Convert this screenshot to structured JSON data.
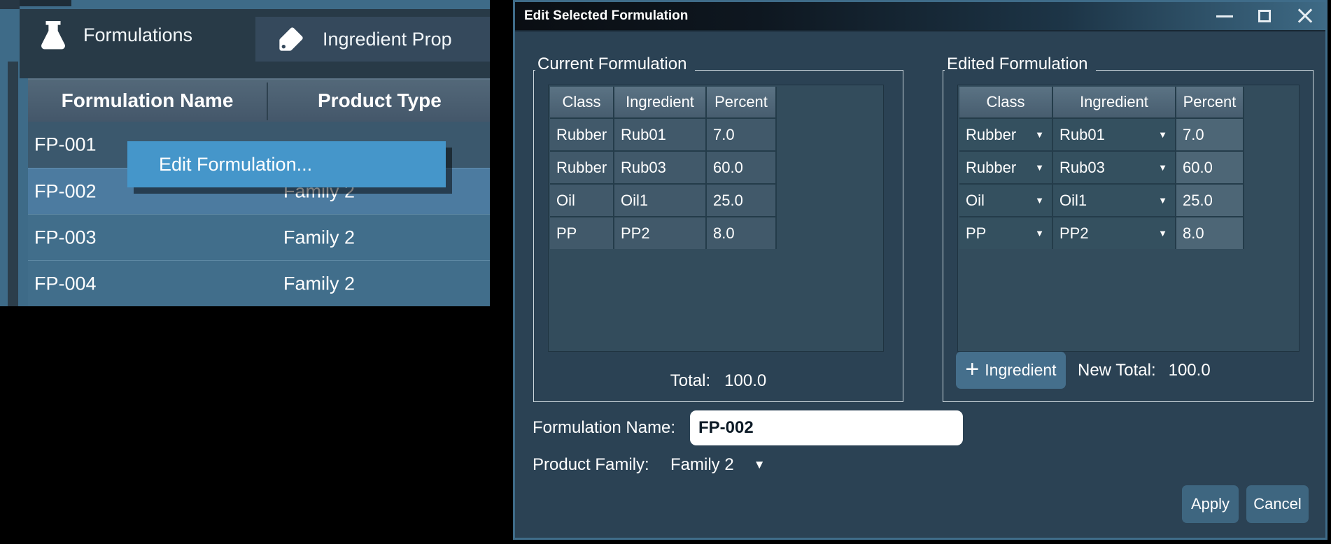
{
  "icons": {
    "chevron_down": "▼",
    "plus": "+"
  },
  "colors": {
    "desktop_background": "#000000",
    "left_window_background": "#3e6b88",
    "selected_row": "#4c7ba0",
    "context_menu_highlight": "#4596ca",
    "dialog_background": "#2b4254",
    "dialog_border": "#3f6c89",
    "button_background": "#3e6680"
  },
  "left_window": {
    "tabs": [
      {
        "label": "Formulations",
        "icon": "flask-icon",
        "selected": true
      },
      {
        "label": "Ingredient Prop",
        "icon": "tag-icon",
        "selected": false
      }
    ],
    "table": {
      "columns": [
        "Formulation Name",
        "Product Type"
      ],
      "rows": [
        {
          "name": "FP-001",
          "product_type": "",
          "selected": false
        },
        {
          "name": "FP-002",
          "product_type": "Family 2",
          "selected": true
        },
        {
          "name": "FP-003",
          "product_type": "Family 2",
          "selected": false
        },
        {
          "name": "FP-004",
          "product_type": "Family 2",
          "selected": false
        }
      ]
    },
    "context_menu": {
      "items": [
        "Edit Formulation..."
      ]
    }
  },
  "dialog": {
    "title": "Edit Selected Formulation",
    "window_controls": [
      "minimize-icon",
      "maximize-icon",
      "close-icon"
    ],
    "current_formulation": {
      "group_label": "Current Formulation",
      "columns": [
        "Class",
        "Ingredient",
        "Percent"
      ],
      "rows": [
        {
          "class": "Rubber",
          "ingredient": "Rub01",
          "percent": "7.0"
        },
        {
          "class": "Rubber",
          "ingredient": "Rub03",
          "percent": "60.0"
        },
        {
          "class": "Oil",
          "ingredient": "Oil1",
          "percent": "25.0"
        },
        {
          "class": "PP",
          "ingredient": "PP2",
          "percent": "8.0"
        }
      ],
      "total_label": "Total:",
      "total_value": "100.0"
    },
    "edited_formulation": {
      "group_label": "Edited Formulation",
      "columns": [
        "Class",
        "Ingredient",
        "Percent"
      ],
      "rows": [
        {
          "class": "Rubber",
          "ingredient": "Rub01",
          "percent": "7.0"
        },
        {
          "class": "Rubber",
          "ingredient": "Rub03",
          "percent": "60.0"
        },
        {
          "class": "Oil",
          "ingredient": "Oil1",
          "percent": "25.0"
        },
        {
          "class": "PP",
          "ingredient": "PP2",
          "percent": "8.0"
        }
      ],
      "add_button_label": "Ingredient",
      "new_total_label": "New Total:",
      "new_total_value": "100.0"
    },
    "formulation_name": {
      "label": "Formulation Name:",
      "value": "FP-002"
    },
    "product_family": {
      "label": "Product Family:",
      "value": "Family 2"
    },
    "buttons": {
      "apply": "Apply",
      "cancel": "Cancel"
    }
  }
}
